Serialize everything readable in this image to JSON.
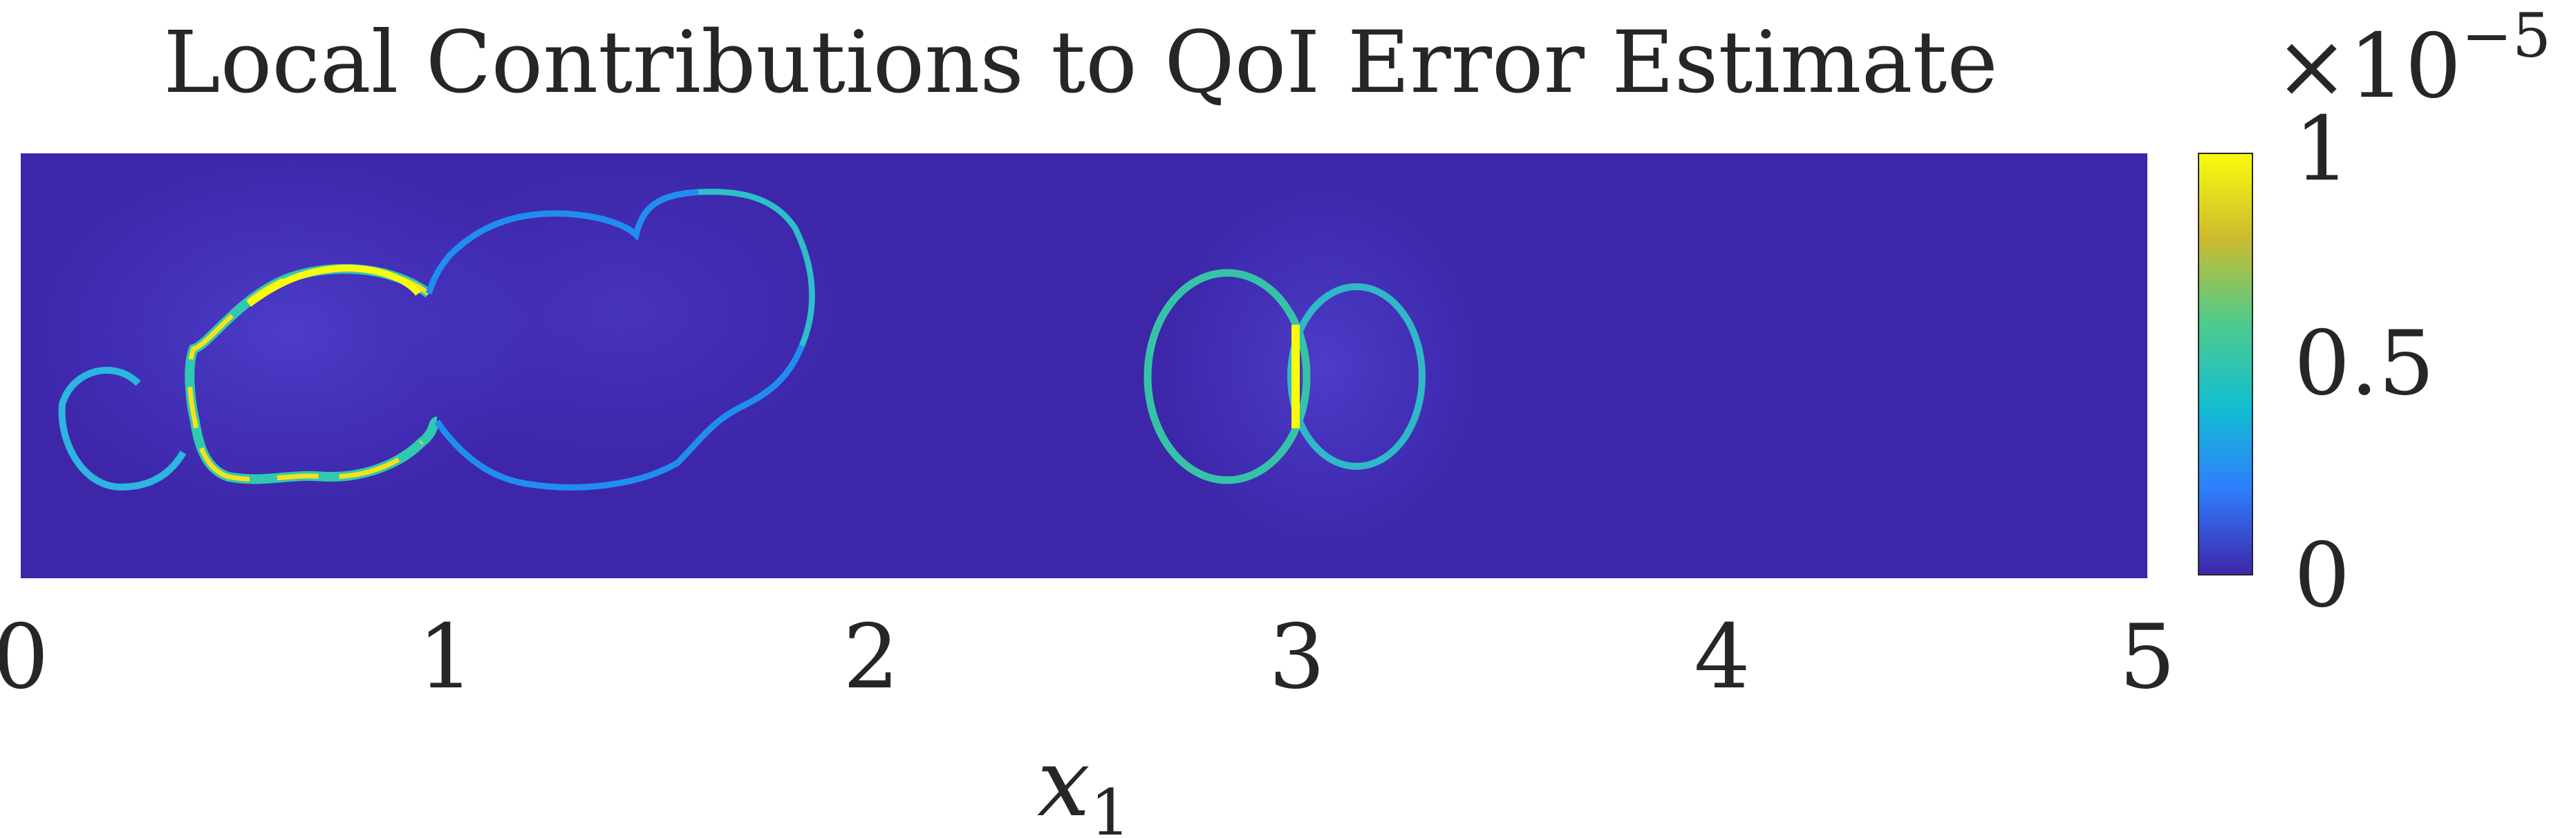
{
  "chart_data": {
    "type": "heatmap",
    "title": "Local Contributions to QoI Error Estimate",
    "xlabel": "x",
    "xlabel_subscript": "1",
    "xlim": [
      0,
      5
    ],
    "x_ticks": [
      "0",
      "1",
      "2",
      "3",
      "4",
      "5"
    ],
    "background_color": "#3d26a8",
    "colormap": "parula",
    "colorbar": {
      "multiplier_base": "×10",
      "multiplier_exponent": "−5",
      "range": [
        0,
        1
      ],
      "ticks": [
        "0",
        "0.5",
        "1"
      ],
      "position": "right"
    },
    "features": [
      {
        "name": "small-left-ring",
        "center_x": 0.25,
        "width": 0.3,
        "peak": 0.4
      },
      {
        "name": "left-blob-ring",
        "center_x": 0.72,
        "width": 0.6,
        "peak": 1.0
      },
      {
        "name": "right-blob-ring",
        "center_x": 1.45,
        "width": 0.85,
        "peak": 0.5
      },
      {
        "name": "circle-a-ring",
        "center_x": 2.82,
        "width": 0.35,
        "peak": 1.0
      },
      {
        "name": "circle-b-ring",
        "center_x": 3.15,
        "width": 0.3,
        "peak": 0.6
      }
    ]
  }
}
